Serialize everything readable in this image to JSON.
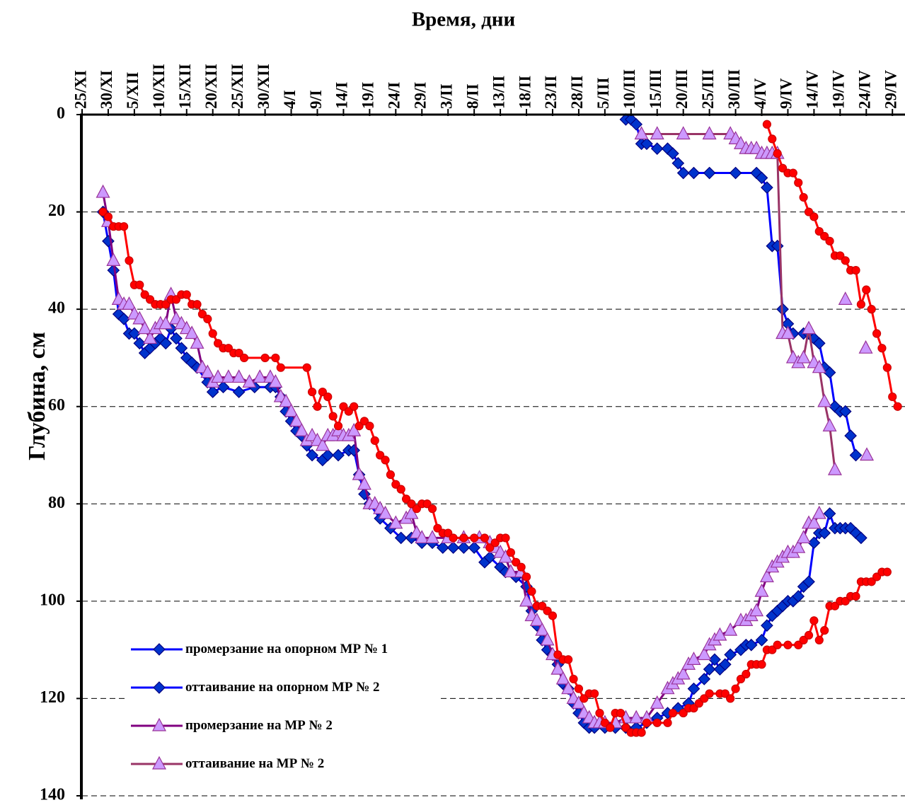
{
  "chart_data": {
    "type": "line",
    "title": "Время, дни",
    "y_label": "Глубина, см",
    "xlim": [
      0,
      157
    ],
    "xticks": [
      {
        "value": 0,
        "label": "25/XI"
      },
      {
        "value": 5,
        "label": "30/XI"
      },
      {
        "value": 10,
        "label": "5/XII"
      },
      {
        "value": 15,
        "label": "10/XII"
      },
      {
        "value": 20,
        "label": "15/XII"
      },
      {
        "value": 25,
        "label": "20/XII"
      },
      {
        "value": 30,
        "label": "25/XII"
      },
      {
        "value": 35,
        "label": "30/XII"
      },
      {
        "value": 40,
        "label": "4/I"
      },
      {
        "value": 45,
        "label": "9/I"
      },
      {
        "value": 50,
        "label": "14/I"
      },
      {
        "value": 55,
        "label": "19/I"
      },
      {
        "value": 60,
        "label": "24/I"
      },
      {
        "value": 65,
        "label": "29/I"
      },
      {
        "value": 70,
        "label": "3/II"
      },
      {
        "value": 75,
        "label": "8/II"
      },
      {
        "value": 80,
        "label": "13/II"
      },
      {
        "value": 85,
        "label": "18/II"
      },
      {
        "value": 90,
        "label": "23/II"
      },
      {
        "value": 95,
        "label": "28/II"
      },
      {
        "value": 100,
        "label": "5/III"
      },
      {
        "value": 105,
        "label": "10/III"
      },
      {
        "value": 110,
        "label": "15/III"
      },
      {
        "value": 115,
        "label": "20/III"
      },
      {
        "value": 120,
        "label": "25/III"
      },
      {
        "value": 125,
        "label": "30/III"
      },
      {
        "value": 130,
        "label": "4/IV"
      },
      {
        "value": 135,
        "label": "9/IV"
      },
      {
        "value": 140,
        "label": "14/IV"
      },
      {
        "value": 145,
        "label": "19/IV"
      },
      {
        "value": 150,
        "label": "24/IV"
      },
      {
        "value": 155,
        "label": "29/IV"
      }
    ],
    "ylim": [
      0,
      140
    ],
    "y_inverted": true,
    "yticks": [
      0,
      20,
      40,
      60,
      80,
      100,
      120,
      140
    ],
    "grid": true,
    "legend": "lower left",
    "series": [
      {
        "name": "промерзание на опорном МР № 1",
        "color": "#0000ff",
        "marker": "diamond",
        "marker_fill": "#0033cc",
        "marker_stroke": "#000080",
        "x": [
          4,
          5,
          6,
          7,
          8,
          9,
          10,
          11,
          12,
          13,
          14,
          15,
          16,
          17,
          18,
          19,
          20,
          21,
          22,
          24,
          25,
          27,
          30,
          33,
          36,
          37,
          38,
          39,
          40,
          41,
          42,
          43,
          44,
          46,
          47,
          49,
          51,
          52,
          53,
          54,
          55,
          57,
          59,
          61,
          63,
          65,
          67,
          69,
          71,
          73,
          75,
          77,
          78,
          80,
          81,
          83,
          85,
          86,
          87,
          88,
          89,
          90,
          91,
          92,
          93,
          94,
          95,
          96,
          97,
          98,
          100,
          102,
          104,
          106,
          108,
          110,
          112,
          114,
          116,
          117,
          119,
          120,
          121,
          122,
          123,
          124,
          126,
          127,
          128,
          130,
          131,
          132,
          133,
          134,
          135,
          136,
          137,
          138,
          139,
          140,
          141,
          142,
          143,
          144,
          145,
          146,
          147,
          148,
          149
        ],
        "values": [
          20,
          26,
          32,
          41,
          42,
          45,
          45,
          47,
          49,
          48,
          47,
          46,
          47,
          44,
          46,
          48,
          50,
          51,
          52,
          55,
          57,
          56,
          57,
          56,
          56,
          56,
          58,
          61,
          63,
          65,
          66,
          68,
          70,
          71,
          70,
          70,
          69,
          69,
          74,
          78,
          80,
          83,
          85,
          87,
          87,
          88,
          88,
          89,
          89,
          89,
          89,
          92,
          91,
          93,
          94,
          95,
          97,
          102,
          105,
          108,
          110,
          111,
          113,
          117,
          118,
          121,
          123,
          125,
          126,
          126,
          126,
          126,
          126,
          126,
          125,
          124,
          123,
          122,
          121,
          118,
          116,
          114,
          112,
          114,
          113,
          111,
          110,
          109,
          109,
          108,
          105,
          103,
          102,
          101,
          100,
          100,
          99,
          97,
          96,
          88,
          86,
          86,
          82,
          85,
          85,
          85,
          85,
          86,
          87
        ]
      },
      {
        "name": "оттаивание на опорном МР № 2",
        "color": "#0000ff",
        "marker": "diamond",
        "marker_fill": "#0033cc",
        "marker_stroke": "#000080",
        "x": [
          104,
          105,
          106,
          107,
          108,
          110,
          112,
          113,
          114,
          115,
          117,
          120,
          125,
          129,
          130,
          131,
          132,
          133,
          134,
          135,
          136,
          138,
          139,
          140,
          141,
          142,
          143,
          144,
          145,
          146,
          147,
          148
        ],
        "values": [
          1,
          1,
          2,
          6,
          6,
          7,
          7,
          8,
          10,
          12,
          12,
          12,
          12,
          12,
          13,
          15,
          27,
          27,
          40,
          43,
          45,
          45,
          45,
          46,
          47,
          52,
          53,
          60,
          61,
          61,
          66,
          70
        ]
      },
      {
        "name": "промерзание на МР № 2",
        "color": "#800080",
        "marker": "triangle",
        "marker_fill": "#cc99ff",
        "marker_stroke": "#993399",
        "x": [
          4,
          5,
          6,
          7,
          8,
          9,
          10,
          11,
          12,
          13,
          14,
          15,
          16,
          17,
          18,
          19,
          20,
          21,
          22,
          23,
          24,
          25,
          26,
          28,
          30,
          32,
          34,
          36,
          37,
          38,
          39,
          40,
          41,
          42,
          43,
          44,
          45,
          46,
          47,
          48,
          49,
          50,
          51,
          52,
          53,
          54,
          55,
          56,
          57,
          58,
          60,
          62,
          63,
          64,
          65,
          67,
          70,
          73,
          76,
          78,
          79,
          80,
          81,
          82,
          84,
          85,
          86,
          87,
          88,
          89,
          90,
          91,
          92,
          93,
          94,
          95,
          96,
          97,
          98,
          99,
          100,
          102,
          104,
          106,
          108,
          110,
          112,
          113,
          114,
          115,
          116,
          117,
          119,
          120,
          121,
          122,
          124,
          126,
          127,
          128,
          129,
          130,
          131,
          132,
          133,
          134,
          135,
          136,
          137,
          138,
          139,
          140,
          141
        ],
        "values": [
          16,
          22,
          30,
          38,
          39,
          39,
          41,
          42,
          44,
          46,
          44,
          43,
          43,
          37,
          42,
          43,
          44,
          45,
          47,
          52,
          53,
          55,
          54,
          54,
          54,
          55,
          54,
          54,
          55,
          58,
          59,
          61,
          63,
          65,
          67,
          66,
          67,
          68,
          66,
          66,
          65,
          66,
          66,
          65,
          74,
          76,
          80,
          80,
          81,
          82,
          84,
          83,
          82,
          86,
          87,
          87,
          87,
          87,
          87,
          88,
          89,
          90,
          91,
          94,
          94,
          100,
          103,
          104,
          106,
          108,
          111,
          114,
          116,
          118,
          120,
          121,
          123,
          124,
          125,
          125,
          125,
          125,
          124,
          124,
          124,
          121,
          118,
          117,
          116,
          115,
          113,
          112,
          111,
          109,
          108,
          107,
          106,
          104,
          104,
          103,
          102,
          98,
          95,
          93,
          92,
          91,
          90,
          90,
          89,
          87,
          84,
          84,
          82
        ]
      },
      {
        "name": "оттаивание на МР № 2",
        "color": "#993366",
        "marker": "triangle",
        "marker_fill": "#cc99ff",
        "marker_stroke": "#993399",
        "x": [
          107,
          110,
          115,
          120,
          124,
          125,
          126,
          127,
          128,
          129,
          130,
          131,
          132,
          133,
          134,
          135,
          136,
          137,
          138,
          139,
          140,
          141,
          142,
          143,
          144,
          145,
          146,
          148,
          149.9,
          150,
          150.1
        ],
        "values": [
          4,
          4,
          4,
          4,
          4,
          5,
          6,
          7,
          7,
          7,
          8,
          8,
          8,
          8,
          45,
          45,
          50,
          51,
          50,
          44,
          51,
          52,
          59,
          64,
          73,
          null,
          38,
          null,
          48,
          null,
          70
        ]
      },
      {
        "color": "#ff0000",
        "marker": "circle",
        "marker_fill": "#ff0000",
        "marker_stroke": "#cc0000",
        "x": [
          4,
          5,
          6,
          7,
          8,
          9,
          10,
          11,
          12,
          13,
          14,
          15,
          16,
          17,
          18,
          19,
          20,
          21,
          22,
          23,
          24,
          25,
          26,
          27,
          28,
          29,
          30,
          31,
          35,
          37,
          38,
          43,
          44,
          45,
          46,
          47,
          48,
          49,
          50,
          51,
          52,
          53,
          54,
          55,
          56,
          57,
          58,
          59,
          60,
          61,
          62,
          63,
          64,
          65,
          66,
          67,
          68,
          69,
          70,
          71,
          73,
          75,
          77,
          78,
          79,
          80,
          81,
          82,
          83,
          84,
          85,
          86,
          87,
          88,
          89,
          90,
          91,
          92,
          93,
          94,
          95,
          96,
          97,
          98,
          99,
          100,
          101,
          102,
          103,
          104,
          105,
          106,
          107,
          108,
          110,
          112,
          113,
          115,
          116,
          117,
          118,
          119,
          120,
          122,
          123,
          124,
          125,
          126,
          127,
          128,
          129,
          130,
          131,
          132,
          133,
          135,
          137,
          138,
          139,
          140,
          141,
          142,
          143,
          144,
          145,
          146,
          147,
          148,
          149,
          150,
          151,
          152,
          153,
          154
        ],
        "values": [
          20,
          21,
          23,
          23,
          23,
          30,
          35,
          35,
          37,
          38,
          39,
          39,
          39,
          38,
          38,
          37,
          37,
          39,
          39,
          41,
          42,
          45,
          47,
          48,
          48,
          49,
          49,
          50,
          50,
          50,
          52,
          52,
          57,
          60,
          57,
          58,
          62,
          64,
          60,
          61,
          60,
          64,
          63,
          64,
          67,
          70,
          71,
          74,
          76,
          77,
          79,
          80,
          81,
          80,
          80,
          81,
          85,
          86,
          86,
          87,
          87,
          87,
          87,
          89,
          88,
          87,
          87,
          90,
          92,
          93,
          95,
          98,
          101,
          101,
          102,
          103,
          111,
          112,
          112,
          116,
          118,
          120,
          119,
          119,
          123,
          125,
          126,
          123,
          123,
          126,
          127,
          127,
          127,
          125,
          125,
          125,
          123,
          123,
          122,
          122,
          121,
          120,
          119,
          119,
          119,
          120,
          118,
          116,
          115,
          113,
          113,
          113,
          110,
          110,
          109,
          109,
          109,
          108,
          107,
          104,
          108,
          106,
          101,
          101,
          100,
          100,
          99,
          99,
          96,
          96,
          96,
          95,
          94,
          94
        ]
      },
      {
        "color": "#ff0000",
        "marker": "circle",
        "marker_fill": "#ff0000",
        "marker_stroke": "#cc0000",
        "x": [
          131,
          132,
          133,
          134,
          135,
          136,
          137,
          138,
          139,
          140,
          141,
          142,
          143,
          144,
          145,
          146,
          147,
          148,
          149,
          150,
          151,
          152,
          153,
          154,
          155,
          156
        ],
        "values": [
          2,
          5,
          8,
          11,
          12,
          12,
          14,
          17,
          20,
          21,
          24,
          25,
          26,
          29,
          29,
          30,
          32,
          32,
          39,
          36,
          40,
          45,
          48,
          52,
          58,
          60
        ]
      }
    ]
  }
}
